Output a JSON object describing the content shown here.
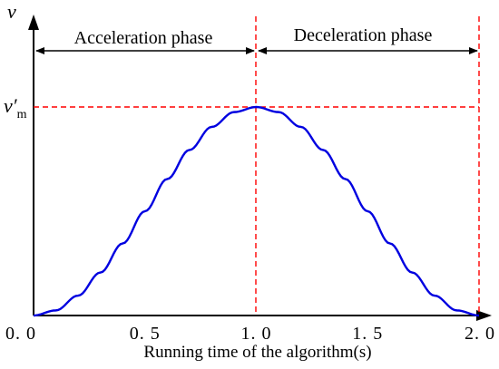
{
  "chart_data": {
    "type": "line",
    "xlabel": "Running time of the algorithm(s)",
    "ylabel": "v",
    "xlim": [
      0,
      2
    ],
    "x_ticks": [
      "0. 0",
      "0. 5",
      "1. 0",
      "1. 5",
      "2. 0"
    ],
    "x_tick_values": [
      0,
      0.5,
      1,
      1.5,
      2
    ],
    "y_marker": {
      "label_main": "v′",
      "label_sub": "m",
      "value": 1
    },
    "phases": [
      {
        "label": "Acceleration phase",
        "from": 0,
        "to": 1
      },
      {
        "label": "Deceleration phase",
        "from": 1,
        "to": 2
      }
    ],
    "reference_lines": {
      "vertical_x": [
        1,
        2
      ],
      "horizontal_y": 1,
      "color": "#ff0000",
      "style": "dashed"
    },
    "series": [
      {
        "color": "#0000e0",
        "x": [
          0,
          0.1,
          0.2,
          0.3,
          0.4,
          0.5,
          0.6,
          0.7,
          0.8,
          0.9,
          1.0,
          1.1,
          1.2,
          1.3,
          1.4,
          1.5,
          1.6,
          1.7,
          1.8,
          1.9,
          2.0
        ],
        "y": [
          0,
          0.0245,
          0.0955,
          0.2061,
          0.3455,
          0.5,
          0.6545,
          0.7939,
          0.9045,
          0.9755,
          1.0,
          0.9755,
          0.9045,
          0.7939,
          0.6545,
          0.5,
          0.3455,
          0.2061,
          0.0955,
          0.0245,
          0
        ]
      }
    ],
    "grid": false
  }
}
